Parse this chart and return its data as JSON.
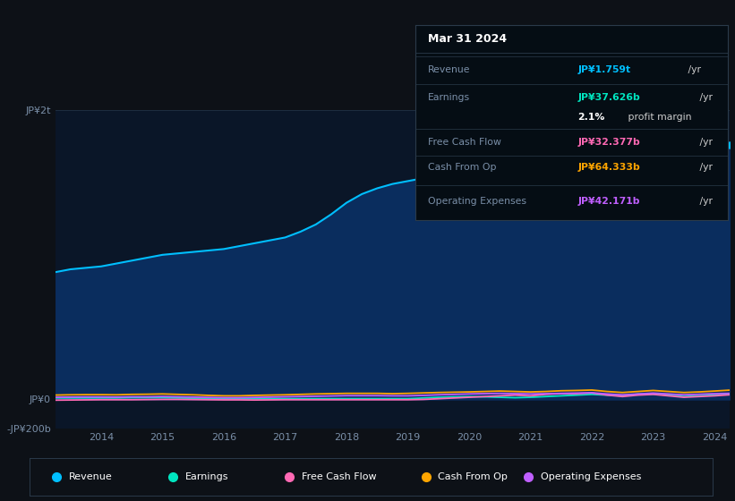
{
  "background_color": "#0d1117",
  "plot_bg_color": "#0a1628",
  "years": [
    2013.25,
    2013.5,
    2013.75,
    2014.0,
    2014.25,
    2014.5,
    2014.75,
    2015.0,
    2015.25,
    2015.5,
    2015.75,
    2016.0,
    2016.25,
    2016.5,
    2016.75,
    2017.0,
    2017.25,
    2017.5,
    2017.75,
    2018.0,
    2018.25,
    2018.5,
    2018.75,
    2019.0,
    2019.25,
    2019.5,
    2019.75,
    2020.0,
    2020.25,
    2020.5,
    2020.75,
    2021.0,
    2021.25,
    2021.5,
    2021.75,
    2022.0,
    2022.25,
    2022.5,
    2022.75,
    2023.0,
    2023.25,
    2023.5,
    2023.75,
    2024.0,
    2024.25
  ],
  "revenue": [
    880,
    900,
    910,
    920,
    940,
    960,
    980,
    1000,
    1010,
    1020,
    1030,
    1040,
    1060,
    1080,
    1100,
    1120,
    1160,
    1210,
    1280,
    1360,
    1420,
    1460,
    1490,
    1510,
    1530,
    1540,
    1540,
    1545,
    1550,
    1555,
    1560,
    1570,
    1590,
    1620,
    1660,
    1710,
    1760,
    1810,
    1840,
    1870,
    1850,
    1830,
    1810,
    1790,
    1759
  ],
  "earnings": [
    10,
    10,
    10,
    10,
    10,
    12,
    12,
    12,
    10,
    8,
    6,
    5,
    5,
    5,
    5,
    5,
    5,
    5,
    5,
    5,
    5,
    5,
    5,
    5,
    10,
    15,
    18,
    20,
    18,
    15,
    12,
    15,
    20,
    25,
    30,
    35,
    30,
    25,
    37,
    37,
    30,
    20,
    25,
    30,
    37.626
  ],
  "free_cash_flow": [
    -5,
    -4,
    -3,
    -2,
    -2,
    -2,
    -1,
    0,
    0,
    -1,
    -2,
    -3,
    -3,
    -4,
    -3,
    -2,
    -2,
    -2,
    -2,
    -2,
    -2,
    -2,
    -2,
    -2,
    0,
    5,
    10,
    15,
    20,
    25,
    30,
    25,
    35,
    40,
    40,
    45,
    30,
    20,
    30,
    35,
    25,
    15,
    20,
    25,
    32.377
  ],
  "cash_from_op": [
    30,
    32,
    33,
    33,
    32,
    35,
    36,
    38,
    35,
    32,
    28,
    25,
    25,
    28,
    30,
    32,
    35,
    38,
    40,
    42,
    42,
    42,
    40,
    42,
    45,
    48,
    50,
    52,
    55,
    58,
    55,
    52,
    55,
    60,
    62,
    65,
    55,
    48,
    55,
    62,
    55,
    48,
    52,
    58,
    64.333
  ],
  "operating_expenses": [
    15,
    16,
    17,
    17,
    16,
    18,
    18,
    20,
    18,
    16,
    14,
    12,
    12,
    14,
    16,
    18,
    20,
    22,
    24,
    26,
    26,
    26,
    25,
    25,
    28,
    32,
    35,
    38,
    40,
    42,
    40,
    38,
    40,
    42,
    44,
    46,
    38,
    32,
    38,
    44,
    38,
    32,
    36,
    40,
    42.171
  ],
  "ylim": [
    -200,
    2000
  ],
  "ytick_labels": [
    "-JP¥200b",
    "JP¥0",
    "JP¥2t"
  ],
  "ytick_vals": [
    -200,
    0,
    2000
  ],
  "xtick_years": [
    2014,
    2015,
    2016,
    2017,
    2018,
    2019,
    2020,
    2021,
    2022,
    2023,
    2024
  ],
  "revenue_color": "#00bfff",
  "earnings_color": "#00e5c0",
  "free_cash_flow_color": "#ff69b4",
  "cash_from_op_color": "#ffa500",
  "operating_expenses_color": "#bf5fff",
  "fill_color": "#0a2d5e",
  "grid_color": "#1e2e40",
  "text_color": "#7a8fa8",
  "tooltip_bg": "#050d14",
  "tooltip_border": "#2a3a4a",
  "tooltip_title": "Mar 31 2024",
  "tooltip_revenue_label": "Revenue",
  "tooltip_revenue_value": "JP¥1.759t",
  "tooltip_earnings_label": "Earnings",
  "tooltip_earnings_value": "JP¥37.626b",
  "tooltip_margin_pct": "2.1%",
  "tooltip_margin_text": " profit margin",
  "tooltip_fcf_label": "Free Cash Flow",
  "tooltip_fcf_value": "JP¥32.377b",
  "tooltip_cop_label": "Cash From Op",
  "tooltip_cop_value": "JP¥64.333b",
  "tooltip_opex_label": "Operating Expenses",
  "tooltip_opex_value": "JP¥42.171b",
  "legend_labels": [
    "Revenue",
    "Earnings",
    "Free Cash Flow",
    "Cash From Op",
    "Operating Expenses"
  ]
}
